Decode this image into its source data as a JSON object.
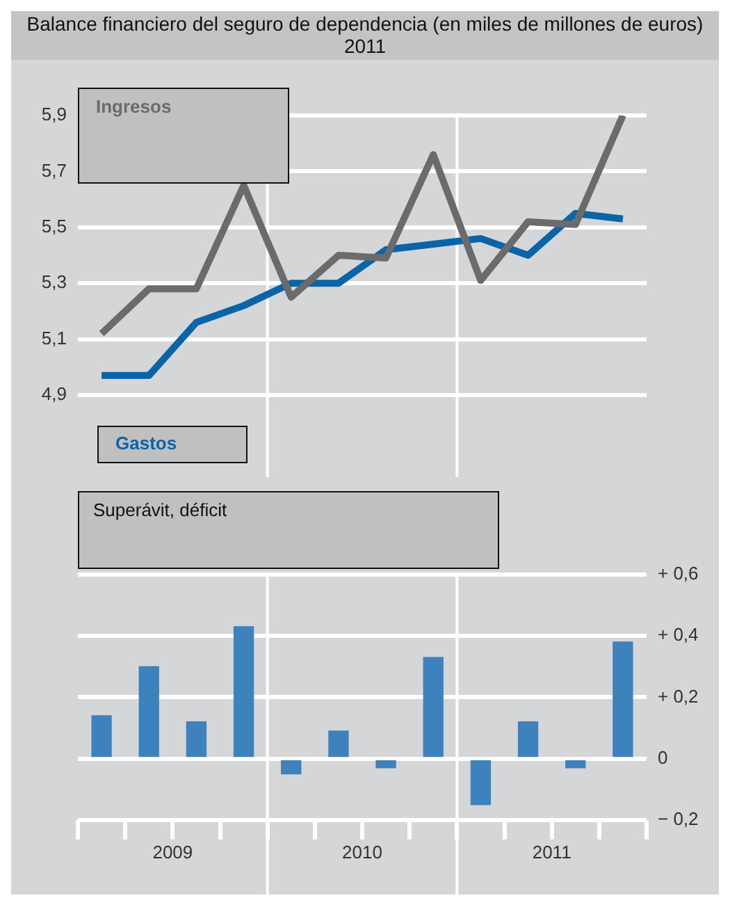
{
  "chart_data": [
    {
      "type": "line",
      "title": "Balance financiero del seguro de dependencia (en miles de millones de euros) 2011",
      "x": [
        2009.125,
        2009.375,
        2009.625,
        2009.875,
        2010.125,
        2010.375,
        2010.625,
        2010.875,
        2011.125,
        2011.375,
        2011.625,
        2011.875
      ],
      "series": [
        {
          "name": "Ingresos",
          "color": "#6b6b6b",
          "values": [
            5.12,
            5.28,
            5.28,
            5.65,
            5.25,
            5.4,
            5.39,
            5.76,
            5.31,
            5.52,
            5.51,
            5.9
          ]
        },
        {
          "name": "Gastos",
          "color": "#0a64a8",
          "values": [
            4.97,
            4.97,
            5.16,
            5.22,
            5.3,
            5.3,
            5.42,
            5.44,
            5.46,
            5.4,
            5.55,
            5.53
          ]
        }
      ],
      "xlim": [
        2009,
        2012
      ],
      "ylim": [
        4.9,
        5.9
      ],
      "yticks": [
        {
          "value": 4.9,
          "label": "4,9"
        },
        {
          "value": 5.1,
          "label": "5,1"
        },
        {
          "value": 5.3,
          "label": "5,3"
        },
        {
          "value": 5.5,
          "label": "5,5"
        },
        {
          "value": 5.7,
          "label": "5,7"
        },
        {
          "value": 5.9,
          "label": "5,9"
        }
      ],
      "grid": "y",
      "tick_labels": "y",
      "marker": "none",
      "ref_lines": [
        {
          "axis": "x",
          "value": 2010,
          "color": "#ffffff"
        },
        {
          "axis": "x",
          "value": 2011,
          "color": "#ffffff"
        }
      ]
    },
    {
      "type": "bar",
      "title": "Superávit, déficit",
      "x": [
        2009.125,
        2009.375,
        2009.625,
        2009.875,
        2010.125,
        2010.375,
        2010.625,
        2010.875,
        2011.125,
        2011.375,
        2011.625,
        2011.875
      ],
      "series": [
        {
          "color": "#3d82bd",
          "axis": "y2",
          "values": [
            0.14,
            0.3,
            0.12,
            0.43,
            -0.05,
            0.09,
            -0.03,
            0.33,
            -0.15,
            0.12,
            -0.03,
            0.38
          ]
        }
      ],
      "xlim": [
        2009,
        2012
      ],
      "xticks": [
        {
          "value": 2009,
          "label": null
        },
        {
          "value": 2009.25,
          "label": null
        },
        {
          "value": 2009.5,
          "label": "2009"
        },
        {
          "value": 2009.75,
          "label": null
        },
        {
          "value": 2010,
          "label": null
        },
        {
          "value": 2010.25,
          "label": null
        },
        {
          "value": 2010.5,
          "label": "2010"
        },
        {
          "value": 2010.75,
          "label": null
        },
        {
          "value": 2011,
          "label": null
        },
        {
          "value": 2011.25,
          "label": null
        },
        {
          "value": 2011.5,
          "label": "2011"
        },
        {
          "value": 2011.75,
          "label": null
        },
        {
          "value": 2012,
          "label": null
        }
      ],
      "y2lim": [
        -0.2,
        0.6
      ],
      "y2ticks": [
        {
          "value": -0.2,
          "label": "− 0,2"
        },
        {
          "value": 0,
          "label": "0"
        },
        {
          "value": 0.2,
          "label": "+ 0,2"
        },
        {
          "value": 0.4,
          "label": "+ 0,4"
        },
        {
          "value": 0.6,
          "label": "+ 0,6"
        }
      ],
      "grid": "y",
      "ref_lines": [
        {
          "axis": "x",
          "value": 2010,
          "color": "#ffffff"
        },
        {
          "axis": "x",
          "value": 2011,
          "color": "#ffffff"
        }
      ]
    }
  ]
}
